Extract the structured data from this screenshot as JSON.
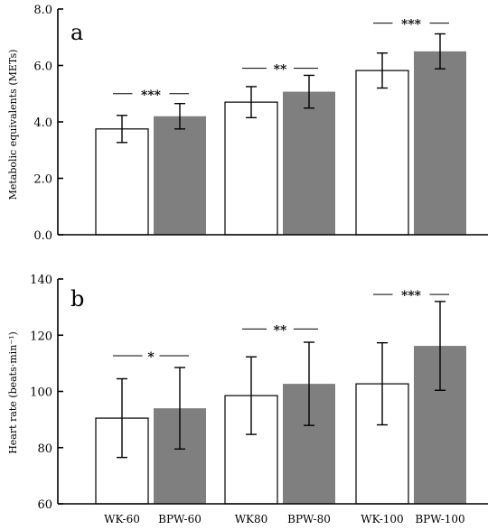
{
  "chart_data": [
    {
      "type": "bar",
      "panel": "a",
      "ylabel": "Metabolic equivalents (METs)",
      "ylim": [
        0,
        8
      ],
      "yticks": [
        "0.0",
        "2.0",
        "4.0",
        "6.0",
        "8.0"
      ],
      "ytick_values": [
        0,
        2,
        4,
        6,
        8
      ],
      "categories": [
        "WK-60",
        "BPW-60",
        "WK80",
        "BPW-80",
        "WK-100",
        "BPW-100"
      ],
      "values": [
        3.75,
        4.2,
        4.7,
        5.07,
        5.82,
        6.5
      ],
      "errors": [
        0.48,
        0.45,
        0.55,
        0.58,
        0.62,
        0.62
      ],
      "fill": [
        "open",
        "filled",
        "open",
        "filled",
        "open",
        "filled"
      ],
      "significance": [
        {
          "pair": [
            0,
            1
          ],
          "label": "***",
          "y": 5.0
        },
        {
          "pair": [
            2,
            3
          ],
          "label": "**",
          "y": 5.9
        },
        {
          "pair": [
            4,
            5
          ],
          "label": "***",
          "y": 7.5
        }
      ],
      "grid": false
    },
    {
      "type": "bar",
      "panel": "b",
      "ylabel": "Heart rate (beats·min⁻¹)",
      "ylim": [
        60,
        140
      ],
      "yticks": [
        "60",
        "80",
        "100",
        "120",
        "140"
      ],
      "ytick_values": [
        60,
        80,
        100,
        120,
        140
      ],
      "categories": [
        "WK-60",
        "BPW-60",
        "WK80",
        "BPW-80",
        "WK-100",
        "BPW-100"
      ],
      "values": [
        90.5,
        94,
        98.5,
        102.7,
        102.7,
        116.2
      ],
      "errors": [
        14,
        14.5,
        13.8,
        14.8,
        14.6,
        15.8
      ],
      "fill": [
        "open",
        "filled",
        "open",
        "filled",
        "open",
        "filled"
      ],
      "significance": [
        {
          "pair": [
            0,
            1
          ],
          "label": "*",
          "y": 112.7
        },
        {
          "pair": [
            2,
            3
          ],
          "label": "**",
          "y": 122.2
        },
        {
          "pair": [
            4,
            5
          ],
          "label": "***",
          "y": 134.5
        }
      ],
      "grid": false
    }
  ],
  "colors": {
    "filled": "#7f7f7f",
    "open": "#ffffff",
    "ink": "#000000"
  }
}
